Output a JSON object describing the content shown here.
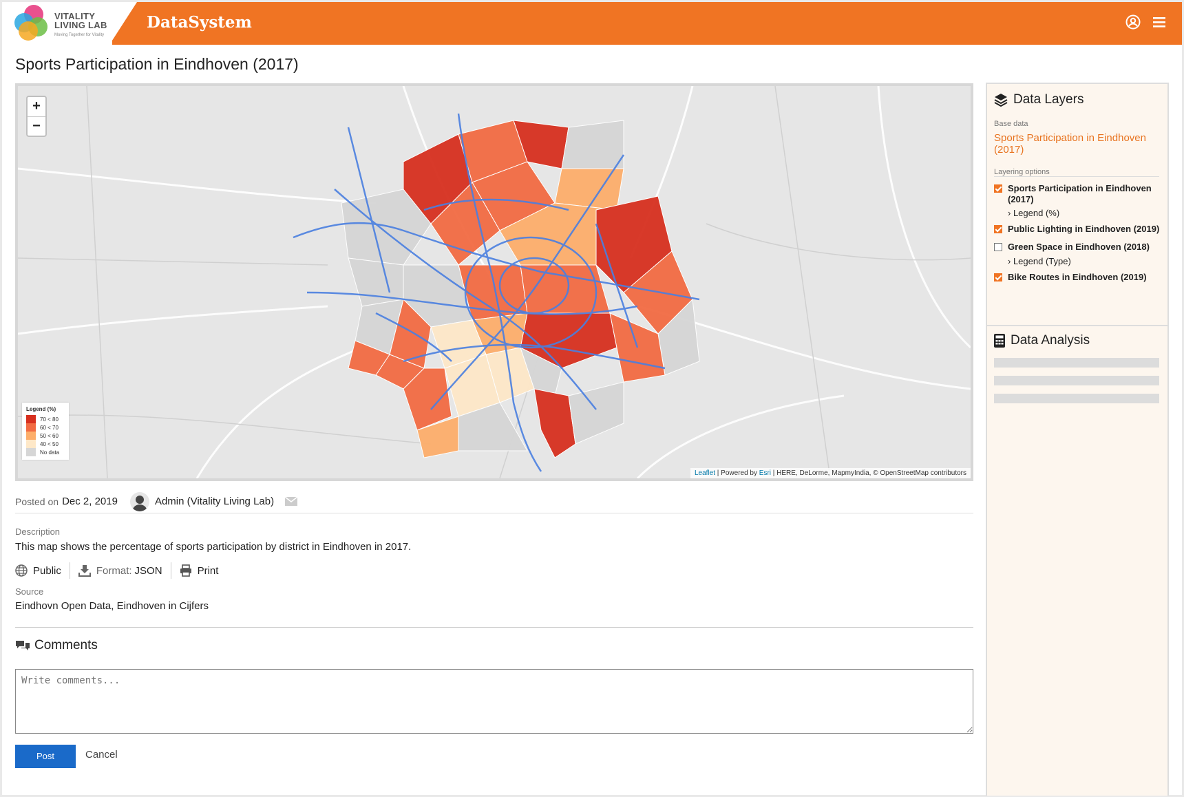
{
  "header": {
    "logo_line1": "VITALITY",
    "logo_line2": "LIVING LAB",
    "logo_tagline": "Moving Together for Vitality",
    "app_title": "DataSystem",
    "icons": [
      "user-circle-icon",
      "hamburger-menu-icon"
    ],
    "brand_color": "#f07423"
  },
  "page": {
    "title": "Sports Participation in Eindhoven (2017)"
  },
  "map": {
    "zoom_in": "+",
    "zoom_out": "−",
    "legend": {
      "title": "Legend (%)",
      "items": [
        {
          "label": "70 < 80",
          "color": "#d7301f"
        },
        {
          "label": "60 < 70",
          "color": "#f26b43"
        },
        {
          "label": "50 < 60",
          "color": "#fdae6b"
        },
        {
          "label": "40 < 50",
          "color": "#fee8c8"
        },
        {
          "label": "No data",
          "color": "#d6d6d6"
        }
      ]
    },
    "attribution": {
      "leaflet": "Leaflet",
      "powered": " | Powered by ",
      "esri": "Esri",
      "rest": " | HERE, DeLorme, MapmyIndia, © OpenStreetMap contributors"
    }
  },
  "meta": {
    "posted_on_label": "Posted on",
    "date": "Dec 2, 2019",
    "author": "Admin (Vitality Living Lab)"
  },
  "description": {
    "label": "Description",
    "text": "This map shows the percentage of sports participation by district in Eindhoven in 2017."
  },
  "actions": {
    "visibility": "Public",
    "format_label": "Format:",
    "format_value": "JSON",
    "print": "Print"
  },
  "source": {
    "label": "Source",
    "text": "Eindhovn Open Data, Eindhoven in Cijfers"
  },
  "comments": {
    "title": "Comments",
    "placeholder": "Write comments...",
    "post": "Post",
    "cancel": "Cancel"
  },
  "sidebar": {
    "layers_title": "Data Layers",
    "base_label": "Base data",
    "base_value": "Sports Participation in Eindhoven (2017)",
    "layering_label": "Layering options",
    "layers": [
      {
        "label": "Sports Participation in Eindhoven (2017)",
        "checked": true,
        "sub": "Legend (%)"
      },
      {
        "label": "Public Lighting in Eindhoven (2019)",
        "checked": true,
        "sub": ""
      },
      {
        "label": "Green Space in Eindhoven (2018)",
        "checked": false,
        "sub": "Legend (Type)"
      },
      {
        "label": "Bike Routes in Eindhoven (2019)",
        "checked": true,
        "sub": ""
      }
    ],
    "analysis_title": "Data Analysis"
  }
}
